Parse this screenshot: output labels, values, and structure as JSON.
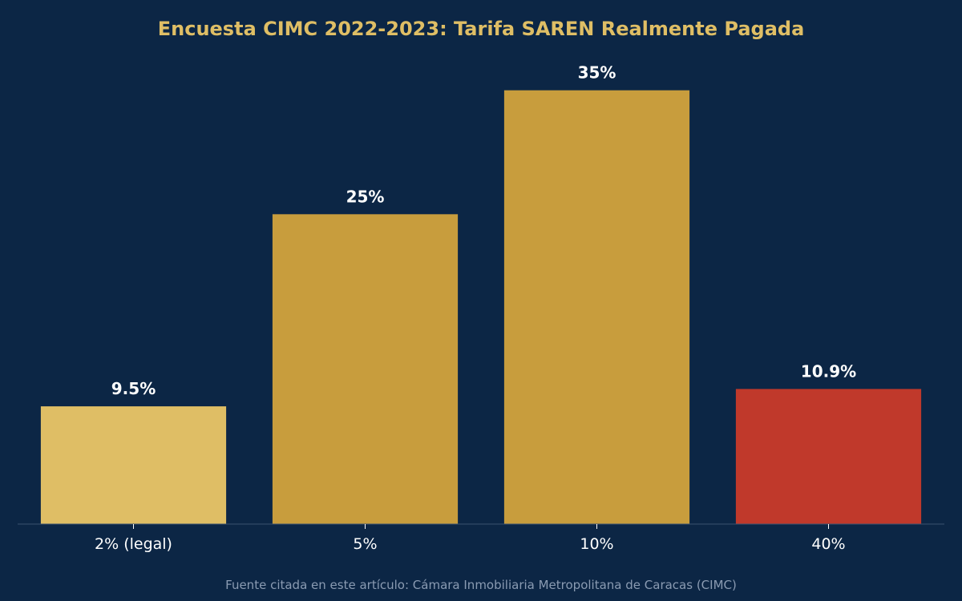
{
  "chart_data": {
    "type": "bar",
    "title": "Encuesta CIMC 2022-2023: Tarifa SAREN Realmente Pagada",
    "categories": [
      "2% (legal)",
      "5%",
      "10%",
      "40%"
    ],
    "values": [
      9.5,
      25,
      35,
      10.9
    ],
    "value_labels": [
      "9.5%",
      "25%",
      "35%",
      "10.9%"
    ],
    "bar_colors": [
      "#dfbe65",
      "#c89d3d",
      "#c89d3d",
      "#c0392b"
    ],
    "xlabel": "",
    "ylabel": "",
    "ylim": [
      0,
      37.5
    ],
    "grid": false,
    "legend": "none",
    "source": "Fuente citada en este artículo: Cámara Inmobiliaria Metropolitana de Caracas (CIMC)"
  },
  "colors": {
    "background": "#0c2645",
    "title": "#dfbe65",
    "value_label": "#ffffff",
    "tick_label": "#ffffff",
    "axis_line": "#3a5170",
    "source": "#8a9bb2"
  }
}
